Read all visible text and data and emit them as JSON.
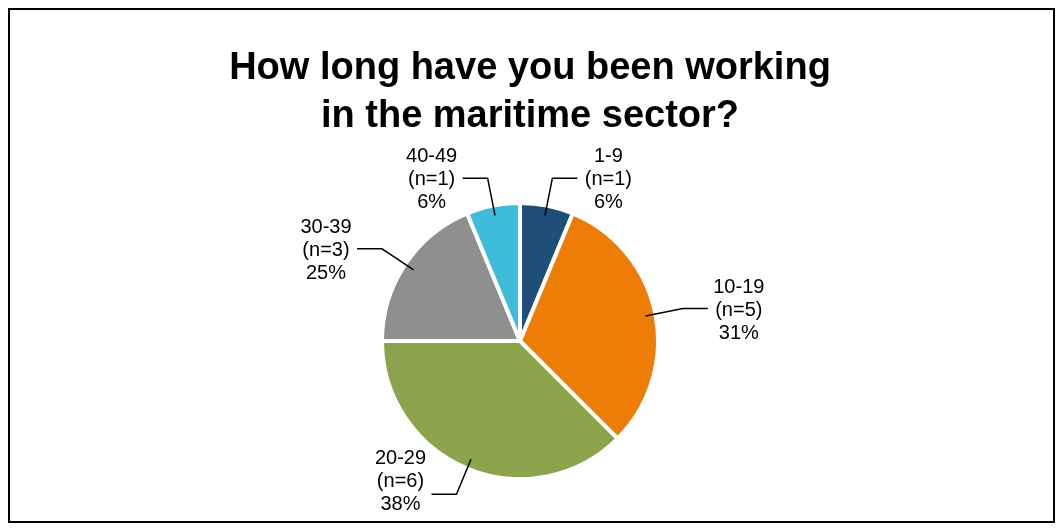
{
  "chart_data": {
    "type": "pie",
    "title": "How long have you been working in the maritime sector?",
    "categories": [
      "1-9",
      "10-19",
      "20-29",
      "30-39",
      "40-49"
    ],
    "values": [
      1,
      5,
      6,
      3,
      1
    ],
    "value_labels": [
      "(n=1)\n6%",
      "(n=5)\n31%",
      "(n=6)\n38%",
      "(n=3)\n25%",
      "(n=1)\n6%"
    ],
    "colors": [
      "#1f4e79",
      "#ed7d07",
      "#8ba34a",
      "#8f8f8f",
      "#3fbcd9"
    ],
    "legend": false
  }
}
